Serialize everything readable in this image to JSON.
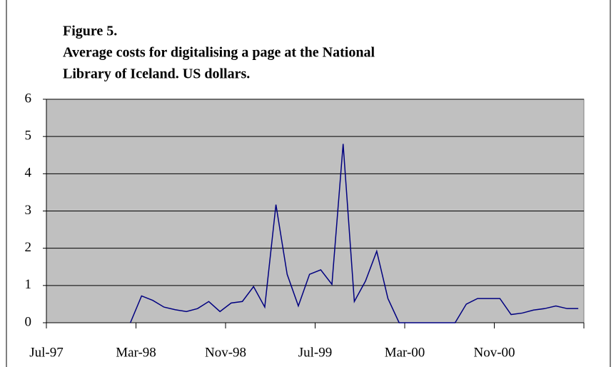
{
  "chart_data": {
    "type": "line",
    "title": [
      "Figure 5.",
      "Average costs for digitalising a page at the National",
      "Library of Iceland. US dollars."
    ],
    "categories": [
      "Jul-97",
      null,
      null,
      null,
      null,
      null,
      null,
      null,
      "Mar-98",
      null,
      null,
      null,
      null,
      null,
      null,
      null,
      "Nov-98",
      null,
      null,
      null,
      null,
      null,
      null,
      null,
      "Jul-99",
      null,
      null,
      null,
      null,
      null,
      null,
      null,
      "Mar-00",
      null,
      null,
      null,
      null,
      null,
      null,
      null,
      "Nov-00",
      null,
      null,
      null,
      null,
      null,
      null,
      null
    ],
    "series": [
      {
        "color": "#000080",
        "values": [
          null,
          null,
          null,
          null,
          null,
          null,
          null,
          0,
          0.72,
          0.6,
          0.42,
          0.35,
          0.3,
          0.38,
          0.57,
          0.3,
          0.53,
          0.57,
          0.97,
          0.42,
          3.17,
          1.3,
          0.45,
          1.3,
          1.42,
          1.03,
          4.8,
          0.57,
          1.12,
          1.92,
          0.65,
          0,
          0,
          0,
          0,
          0,
          0,
          0.5,
          0.65,
          0.65,
          0.65,
          0.22,
          0.26,
          0.34,
          0.38,
          0.45,
          0.38,
          0.38
        ]
      }
    ],
    "ylim": [
      0,
      6
    ],
    "yticks": [
      0,
      1,
      2,
      3,
      4,
      5,
      6
    ],
    "grid": true,
    "plot_background": "#c0c0c0"
  }
}
